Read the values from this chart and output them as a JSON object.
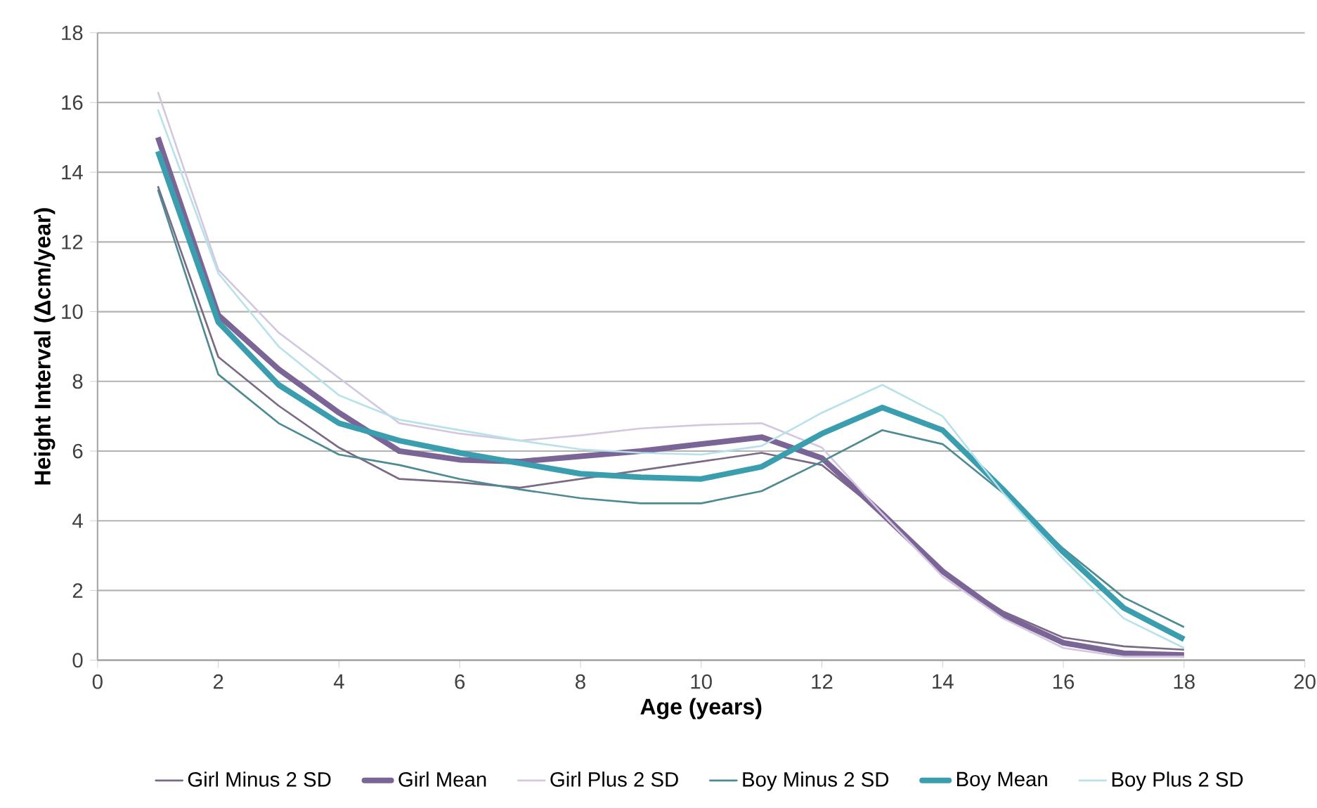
{
  "chart_data": {
    "type": "line",
    "xlabel": "Age (years)",
    "ylabel": "Height Interval (Δcm/year)",
    "x": [
      1,
      2,
      3,
      4,
      5,
      6,
      7,
      8,
      9,
      10,
      11,
      12,
      13,
      14,
      15,
      16,
      17,
      18
    ],
    "xlim": [
      0,
      20
    ],
    "xticks": [
      0,
      2,
      4,
      6,
      8,
      10,
      12,
      14,
      16,
      18,
      20
    ],
    "ylim": [
      0,
      18
    ],
    "yticks": [
      0,
      2,
      4,
      6,
      8,
      10,
      12,
      14,
      16,
      18
    ],
    "grid": "y",
    "legend": "bottom",
    "marker": "none",
    "line_style": "solid",
    "series": [
      {
        "name": "Girl Minus 2 SD",
        "color": "#7a6a85",
        "values": [
          13.6,
          8.7,
          7.3,
          6.1,
          5.2,
          5.1,
          4.95,
          5.2,
          5.45,
          5.7,
          5.95,
          5.6,
          4.2,
          2.5,
          1.4,
          0.65,
          0.4,
          0.3
        ]
      },
      {
        "name": "Girl Mean",
        "color": "#7b6496",
        "values": [
          15.0,
          9.9,
          8.35,
          7.1,
          6.0,
          5.75,
          5.7,
          5.85,
          6.0,
          6.2,
          6.4,
          5.8,
          4.2,
          2.55,
          1.3,
          0.5,
          0.2,
          0.15
        ]
      },
      {
        "name": "Girl Plus 2 SD",
        "color": "#d4c8e0",
        "values": [
          16.3,
          11.2,
          9.4,
          8.1,
          6.8,
          6.5,
          6.3,
          6.45,
          6.65,
          6.75,
          6.8,
          6.1,
          4.2,
          2.4,
          1.2,
          0.35,
          0.1,
          0.1
        ]
      },
      {
        "name": "Boy Minus 2 SD",
        "color": "#4e8a93",
        "values": [
          13.5,
          8.2,
          6.8,
          5.9,
          5.6,
          5.2,
          4.9,
          4.65,
          4.5,
          4.5,
          4.85,
          5.7,
          6.6,
          6.2,
          4.8,
          3.2,
          1.8,
          0.95
        ]
      },
      {
        "name": "Boy Mean",
        "color": "#3a9eae",
        "values": [
          14.6,
          9.7,
          7.9,
          6.8,
          6.3,
          5.95,
          5.65,
          5.35,
          5.25,
          5.2,
          5.55,
          6.5,
          7.25,
          6.6,
          4.9,
          3.1,
          1.5,
          0.6
        ]
      },
      {
        "name": "Boy Plus 2 SD",
        "color": "#b8e2ea",
        "values": [
          15.8,
          11.1,
          9.0,
          7.6,
          6.9,
          6.6,
          6.3,
          6.05,
          5.95,
          5.9,
          6.15,
          7.1,
          7.9,
          7.0,
          4.8,
          2.9,
          1.2,
          0.35
        ]
      }
    ]
  }
}
